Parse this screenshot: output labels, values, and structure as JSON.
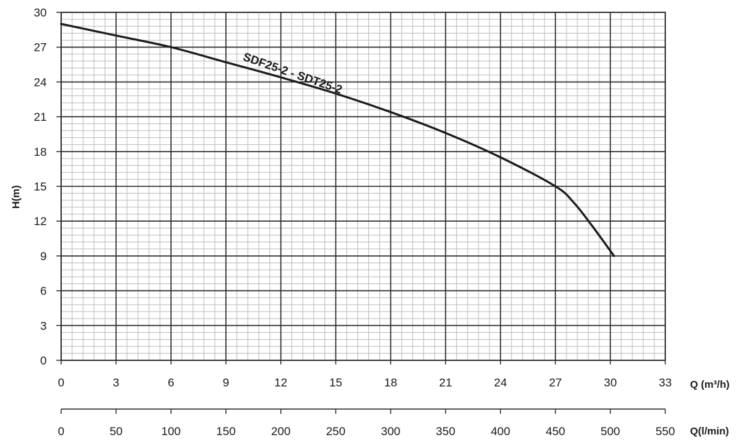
{
  "chart_data": {
    "type": "line",
    "ylabel": "H(m)",
    "xlabel": "Q (m³/h)",
    "xlabel2": "Q(l/min)",
    "xlim": [
      0,
      33
    ],
    "ylim": [
      0,
      30
    ],
    "x2lim": [
      0,
      550
    ],
    "xticks": [
      "0",
      "3",
      "6",
      "9",
      "12",
      "15",
      "18",
      "21",
      "24",
      "27",
      "30",
      "33"
    ],
    "yticks": [
      "0",
      "3",
      "6",
      "9",
      "12",
      "15",
      "18",
      "21",
      "24",
      "27",
      "30"
    ],
    "x2ticks": [
      "0",
      "50",
      "100",
      "150",
      "200",
      "250",
      "300",
      "350",
      "400",
      "450",
      "500",
      "550"
    ],
    "grid": true,
    "legend": "none",
    "series": [
      {
        "name": "SDF25-2 - SDT25-2",
        "color": "#1a1a1a",
        "x": [
          0,
          3,
          6,
          9,
          12,
          15,
          18,
          21,
          24,
          27,
          28,
          29,
          30.2
        ],
        "y": [
          29,
          28,
          27,
          25.7,
          24.4,
          23,
          21.4,
          19.6,
          17.5,
          15,
          13.6,
          11.6,
          9
        ]
      }
    ]
  }
}
